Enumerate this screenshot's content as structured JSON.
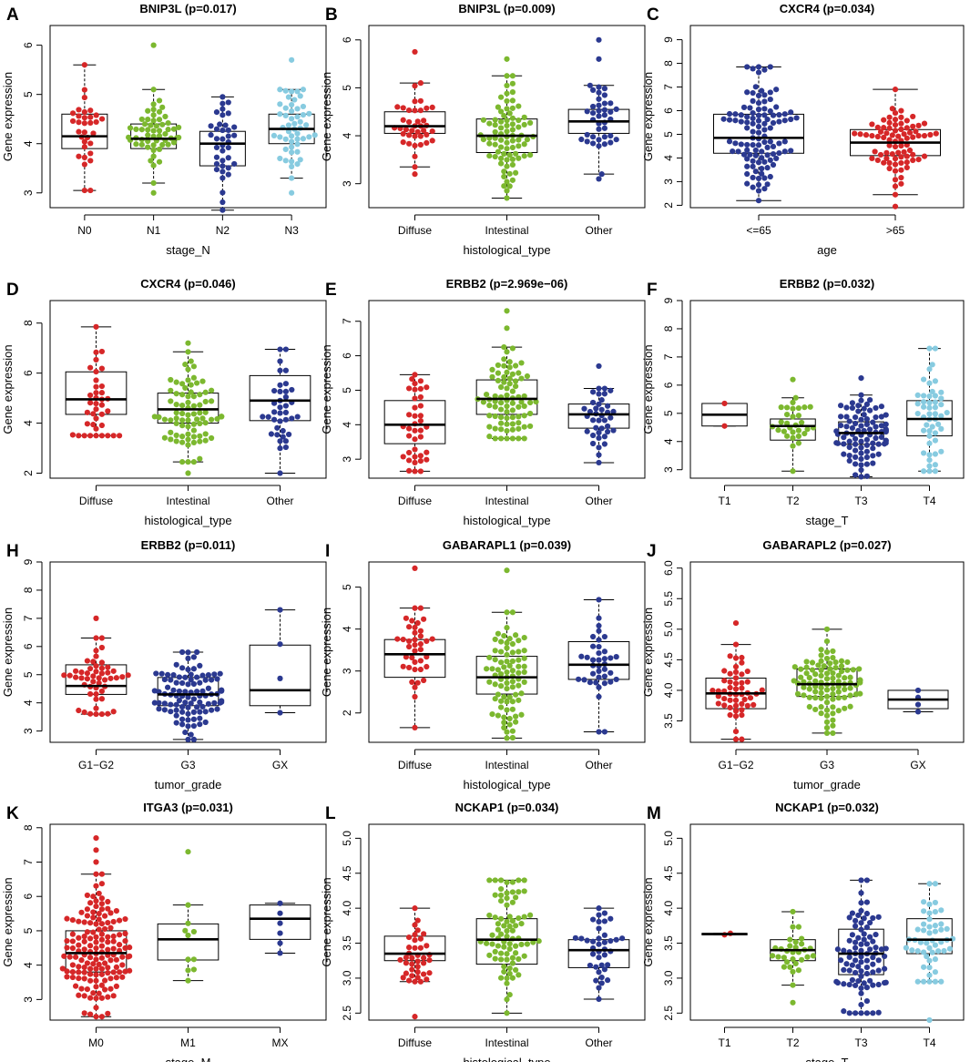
{
  "colors": {
    "red": "#d62728",
    "green": "#7cb82f",
    "blue": "#2b3990",
    "lightblue": "#87cbe0"
  },
  "chart_data": [
    {
      "type": "box",
      "letter": "A",
      "title": "BNIP3L (p=0.017)",
      "xlabel": "stage_N",
      "ylabel": "Gene expression",
      "categories": [
        "N0",
        "N1",
        "N2",
        "N3"
      ],
      "ylim": [
        2.7,
        6.4
      ],
      "yticks": [
        3,
        4,
        5,
        6
      ],
      "series": [
        {
          "name": "N0",
          "color": "red",
          "n": 32,
          "whisker_low": 3.05,
          "q1": 3.9,
          "median": 4.15,
          "q3": 4.6,
          "whisker_high": 5.6,
          "outliers": []
        },
        {
          "name": "N1",
          "color": "green",
          "n": 55,
          "whisker_low": 3.2,
          "q1": 3.9,
          "median": 4.1,
          "q3": 4.4,
          "whisker_high": 5.1,
          "outliers": [
            3.0,
            6.0
          ]
        },
        {
          "name": "N2",
          "color": "blue",
          "n": 38,
          "whisker_low": 2.65,
          "q1": 3.55,
          "median": 4.0,
          "q3": 4.25,
          "whisker_high": 4.95,
          "outliers": []
        },
        {
          "name": "N3",
          "color": "lightblue",
          "n": 50,
          "whisker_low": 3.3,
          "q1": 4.0,
          "median": 4.3,
          "q3": 4.6,
          "whisker_high": 5.1,
          "outliers": [
            3.0,
            5.7
          ]
        }
      ]
    },
    {
      "type": "box",
      "letter": "B",
      "title": "BNIP3L (p=0.009)",
      "xlabel": "histological_type",
      "ylabel": "Gene expression",
      "categories": [
        "Diffuse",
        "Intestinal",
        "Other"
      ],
      "ylim": [
        2.5,
        6.3
      ],
      "yticks": [
        3,
        4,
        5,
        6
      ],
      "series": [
        {
          "name": "Diffuse",
          "color": "red",
          "n": 38,
          "whisker_low": 3.35,
          "q1": 4.05,
          "median": 4.2,
          "q3": 4.5,
          "whisker_high": 5.1,
          "outliers": [
            3.2,
            5.75
          ]
        },
        {
          "name": "Intestinal",
          "color": "green",
          "n": 80,
          "whisker_low": 2.7,
          "q1": 3.65,
          "median": 4.0,
          "q3": 4.35,
          "whisker_high": 5.25,
          "outliers": [
            5.6
          ]
        },
        {
          "name": "Other",
          "color": "blue",
          "n": 38,
          "whisker_low": 3.2,
          "q1": 4.05,
          "median": 4.3,
          "q3": 4.55,
          "whisker_high": 5.05,
          "outliers": [
            3.1,
            5.6,
            6.0
          ]
        }
      ]
    },
    {
      "type": "box",
      "letter": "C",
      "title": "CXCR4 (p=0.034)",
      "xlabel": "age",
      "ylabel": "Gene expression",
      "categories": [
        "<=65",
        ">65"
      ],
      "ylim": [
        1.9,
        9.6
      ],
      "yticks": [
        2,
        3,
        4,
        5,
        6,
        7,
        8,
        9
      ],
      "series": [
        {
          "name": "<=65",
          "color": "blue",
          "n": 110,
          "whisker_low": 2.2,
          "q1": 4.2,
          "median": 4.85,
          "q3": 5.85,
          "whisker_high": 7.85,
          "outliers": []
        },
        {
          "name": ">65",
          "color": "red",
          "n": 80,
          "whisker_low": 2.45,
          "q1": 4.1,
          "median": 4.65,
          "q3": 5.2,
          "whisker_high": 6.9,
          "outliers": [
            1.95
          ]
        }
      ]
    },
    {
      "type": "box",
      "letter": "D",
      "title": "CXCR4 (p=0.046)",
      "xlabel": "histological_type",
      "ylabel": "Gene expression",
      "categories": [
        "Diffuse",
        "Intestinal",
        "Other"
      ],
      "ylim": [
        1.8,
        8.9
      ],
      "yticks": [
        2,
        4,
        6,
        8
      ],
      "series": [
        {
          "name": "Diffuse",
          "color": "red",
          "n": 38,
          "whisker_low": 3.5,
          "q1": 4.35,
          "median": 4.95,
          "q3": 6.05,
          "whisker_high": 7.85,
          "outliers": []
        },
        {
          "name": "Intestinal",
          "color": "green",
          "n": 80,
          "whisker_low": 2.45,
          "q1": 4.0,
          "median": 4.55,
          "q3": 5.2,
          "whisker_high": 6.85,
          "outliers": [
            2.0,
            7.2
          ]
        },
        {
          "name": "Other",
          "color": "blue",
          "n": 38,
          "whisker_low": 2.0,
          "q1": 4.1,
          "median": 4.9,
          "q3": 5.9,
          "whisker_high": 6.95,
          "outliers": []
        }
      ]
    },
    {
      "type": "box",
      "letter": "E",
      "title": "ERBB2 (p=2.969e−06)",
      "xlabel": "histological_type",
      "ylabel": "Gene expression",
      "categories": [
        "Diffuse",
        "Intestinal",
        "Other"
      ],
      "ylim": [
        2.45,
        7.6
      ],
      "yticks": [
        3,
        4,
        5,
        6,
        7
      ],
      "series": [
        {
          "name": "Diffuse",
          "color": "red",
          "n": 38,
          "whisker_low": 2.65,
          "q1": 3.45,
          "median": 4.0,
          "q3": 4.7,
          "whisker_high": 5.45,
          "outliers": []
        },
        {
          "name": "Intestinal",
          "color": "green",
          "n": 80,
          "whisker_low": 3.6,
          "q1": 4.3,
          "median": 4.75,
          "q3": 5.3,
          "whisker_high": 6.25,
          "outliers": [
            6.8,
            7.3
          ]
        },
        {
          "name": "Other",
          "color": "blue",
          "n": 38,
          "whisker_low": 2.9,
          "q1": 3.9,
          "median": 4.3,
          "q3": 4.6,
          "whisker_high": 5.05,
          "outliers": [
            5.7
          ]
        }
      ]
    },
    {
      "type": "box",
      "letter": "F",
      "title": "ERBB2 (p=0.032)",
      "xlabel": "stage_T",
      "ylabel": "Gene expression",
      "categories": [
        "T1",
        "T2",
        "T3",
        "T4"
      ],
      "ylim": [
        2.7,
        9.0
      ],
      "yticks": [
        3,
        4,
        5,
        6,
        7,
        8,
        9
      ],
      "series": [
        {
          "name": "T1",
          "color": "red",
          "n": 2,
          "whisker_low": 4.55,
          "q1": 4.55,
          "median": 4.95,
          "q3": 5.35,
          "whisker_high": 5.35,
          "outliers": []
        },
        {
          "name": "T2",
          "color": "green",
          "n": 30,
          "whisker_low": 2.95,
          "q1": 4.05,
          "median": 4.55,
          "q3": 4.8,
          "whisker_high": 5.55,
          "outliers": [
            6.2
          ]
        },
        {
          "name": "T3",
          "color": "blue",
          "n": 90,
          "whisker_low": 2.75,
          "q1": 3.9,
          "median": 4.3,
          "q3": 4.7,
          "whisker_high": 5.65,
          "outliers": [
            6.25
          ]
        },
        {
          "name": "T4",
          "color": "lightblue",
          "n": 50,
          "whisker_low": 2.95,
          "q1": 4.2,
          "median": 4.8,
          "q3": 5.45,
          "whisker_high": 7.3,
          "outliers": []
        }
      ]
    },
    {
      "type": "box",
      "letter": "H",
      "title": "ERBB2 (p=0.011)",
      "xlabel": "tumor_grade",
      "ylabel": "Gene expression",
      "categories": [
        "G1−G2",
        "G3",
        "GX"
      ],
      "ylim": [
        2.6,
        9.0
      ],
      "yticks": [
        3,
        4,
        5,
        6,
        7,
        8,
        9
      ],
      "series": [
        {
          "name": "G1−G2",
          "color": "red",
          "n": 50,
          "whisker_low": 3.6,
          "q1": 4.3,
          "median": 4.6,
          "q3": 5.35,
          "whisker_high": 6.3,
          "outliers": [
            7.0
          ]
        },
        {
          "name": "G3",
          "color": "blue",
          "n": 100,
          "whisker_low": 2.7,
          "q1": 3.9,
          "median": 4.3,
          "q3": 4.9,
          "whisker_high": 5.8,
          "outliers": []
        },
        {
          "name": "GX",
          "color": "blue",
          "n": 4,
          "whisker_low": 3.65,
          "q1": 3.9,
          "median": 4.45,
          "q3": 6.05,
          "whisker_high": 7.3,
          "outliers": []
        }
      ]
    },
    {
      "type": "box",
      "letter": "I",
      "title": "GABARAPL1 (p=0.039)",
      "xlabel": "histological_type",
      "ylabel": "Gene expression",
      "categories": [
        "Diffuse",
        "Intestinal",
        "Other"
      ],
      "ylim": [
        1.3,
        5.6
      ],
      "yticks": [
        2,
        3,
        4,
        5
      ],
      "series": [
        {
          "name": "Diffuse",
          "color": "red",
          "n": 38,
          "whisker_low": 1.65,
          "q1": 2.85,
          "median": 3.4,
          "q3": 3.75,
          "whisker_high": 4.5,
          "outliers": [
            5.45
          ]
        },
        {
          "name": "Intestinal",
          "color": "green",
          "n": 80,
          "whisker_low": 1.4,
          "q1": 2.45,
          "median": 2.85,
          "q3": 3.35,
          "whisker_high": 4.4,
          "outliers": [
            5.4
          ]
        },
        {
          "name": "Other",
          "color": "blue",
          "n": 38,
          "whisker_low": 1.55,
          "q1": 2.8,
          "median": 3.15,
          "q3": 3.7,
          "whisker_high": 4.7,
          "outliers": []
        }
      ]
    },
    {
      "type": "box",
      "letter": "J",
      "title": "GABARAPL2 (p=0.027)",
      "xlabel": "tumor_grade",
      "ylabel": "Gene expression",
      "categories": [
        "G1−G2",
        "G3",
        "GX"
      ],
      "ylim": [
        3.15,
        6.1
      ],
      "yticks": [
        3.5,
        4.0,
        4.5,
        5.0,
        5.5,
        6.0
      ],
      "series": [
        {
          "name": "G1−G2",
          "color": "red",
          "n": 50,
          "whisker_low": 3.2,
          "q1": 3.7,
          "median": 3.95,
          "q3": 4.2,
          "whisker_high": 4.75,
          "outliers": [
            5.1
          ]
        },
        {
          "name": "G3",
          "color": "green",
          "n": 100,
          "whisker_low": 3.3,
          "q1": 3.9,
          "median": 4.1,
          "q3": 4.35,
          "whisker_high": 5.0,
          "outliers": []
        },
        {
          "name": "GX",
          "color": "blue",
          "n": 4,
          "whisker_low": 3.65,
          "q1": 3.7,
          "median": 3.85,
          "q3": 4.0,
          "whisker_high": 4.0,
          "outliers": []
        }
      ]
    },
    {
      "type": "box",
      "letter": "K",
      "title": "ITGA3 (p=0.031)",
      "xlabel": "stage_M",
      "ylabel": "Gene expression",
      "categories": [
        "M0",
        "M1",
        "MX"
      ],
      "ylim": [
        2.4,
        8.1
      ],
      "yticks": [
        3,
        4,
        5,
        6,
        7,
        8
      ],
      "series": [
        {
          "name": "M0",
          "color": "red",
          "n": 150,
          "whisker_low": 2.5,
          "q1": 3.8,
          "median": 4.35,
          "q3": 5.0,
          "whisker_high": 6.65,
          "outliers": [
            7.0,
            7.35,
            7.7
          ]
        },
        {
          "name": "M1",
          "color": "green",
          "n": 10,
          "whisker_low": 3.55,
          "q1": 4.15,
          "median": 4.75,
          "q3": 5.2,
          "whisker_high": 5.75,
          "outliers": [
            7.3
          ]
        },
        {
          "name": "MX",
          "color": "blue",
          "n": 6,
          "whisker_low": 4.35,
          "q1": 4.75,
          "median": 5.35,
          "q3": 5.75,
          "whisker_high": 5.8,
          "outliers": []
        }
      ]
    },
    {
      "type": "box",
      "letter": "L",
      "title": "NCKAP1 (p=0.034)",
      "xlabel": "histological_type",
      "ylabel": "Gene expression",
      "categories": [
        "Diffuse",
        "Intestinal",
        "Other"
      ],
      "ylim": [
        2.4,
        5.2
      ],
      "yticks": [
        2.5,
        3.0,
        3.5,
        4.0,
        4.5,
        5.0
      ],
      "series": [
        {
          "name": "Diffuse",
          "color": "red",
          "n": 38,
          "whisker_low": 2.95,
          "q1": 3.25,
          "median": 3.35,
          "q3": 3.6,
          "whisker_high": 4.0,
          "outliers": [
            2.45
          ]
        },
        {
          "name": "Intestinal",
          "color": "green",
          "n": 80,
          "whisker_low": 2.5,
          "q1": 3.2,
          "median": 3.55,
          "q3": 3.85,
          "whisker_high": 4.4,
          "outliers": []
        },
        {
          "name": "Other",
          "color": "blue",
          "n": 38,
          "whisker_low": 2.7,
          "q1": 3.15,
          "median": 3.4,
          "q3": 3.55,
          "whisker_high": 4.0,
          "outliers": []
        }
      ]
    },
    {
      "type": "box",
      "letter": "M",
      "title": "NCKAP1 (p=0.032)",
      "xlabel": "stage_T",
      "ylabel": "Gene expression",
      "categories": [
        "T1",
        "T2",
        "T3",
        "T4"
      ],
      "ylim": [
        2.4,
        5.2
      ],
      "yticks": [
        2.5,
        3.0,
        3.5,
        4.0,
        4.5,
        5.0
      ],
      "series": [
        {
          "name": "T1",
          "color": "red",
          "n": 2,
          "whisker_low": 3.62,
          "q1": 3.62,
          "median": 3.63,
          "q3": 3.64,
          "whisker_high": 3.64,
          "outliers": []
        },
        {
          "name": "T2",
          "color": "green",
          "n": 30,
          "whisker_low": 2.9,
          "q1": 3.25,
          "median": 3.4,
          "q3": 3.55,
          "whisker_high": 3.95,
          "outliers": [
            2.65
          ]
        },
        {
          "name": "T3",
          "color": "blue",
          "n": 90,
          "whisker_low": 2.5,
          "q1": 3.05,
          "median": 3.35,
          "q3": 3.7,
          "whisker_high": 4.4,
          "outliers": []
        },
        {
          "name": "T4",
          "color": "lightblue",
          "n": 50,
          "whisker_low": 2.95,
          "q1": 3.35,
          "median": 3.55,
          "q3": 3.85,
          "whisker_high": 4.35,
          "outliers": [
            2.4
          ]
        }
      ]
    }
  ]
}
